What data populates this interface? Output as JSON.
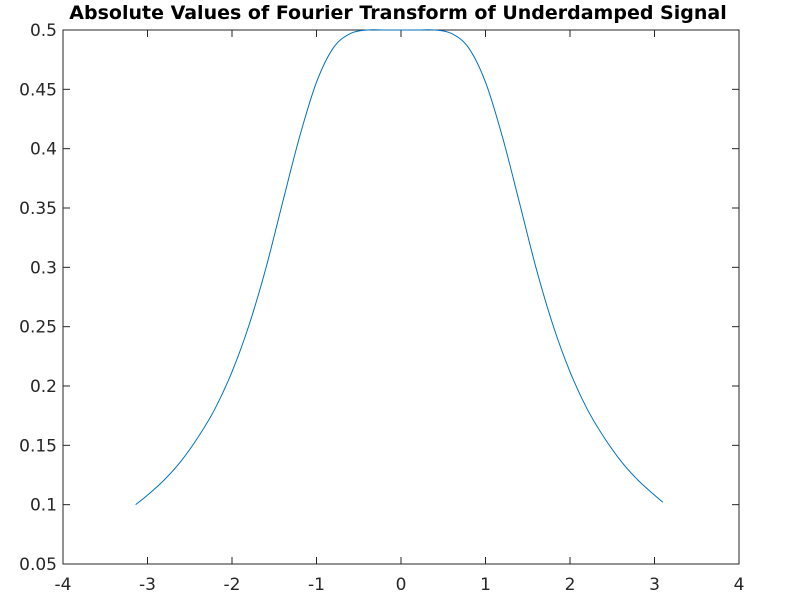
{
  "chart_data": {
    "type": "line",
    "title": "Absolute Values of Fourier Transform of Underdamped Signal",
    "xlabel": "",
    "ylabel": "",
    "xlim": [
      -4,
      4
    ],
    "ylim": [
      0.05,
      0.5
    ],
    "grid": false,
    "x_ticks": [
      {
        "value": -4,
        "label": "-4"
      },
      {
        "value": -3,
        "label": "-3"
      },
      {
        "value": -2,
        "label": "-2"
      },
      {
        "value": -1,
        "label": "-1"
      },
      {
        "value": 0,
        "label": "0"
      },
      {
        "value": 1,
        "label": "1"
      },
      {
        "value": 2,
        "label": "2"
      },
      {
        "value": 3,
        "label": "3"
      },
      {
        "value": 4,
        "label": "4"
      }
    ],
    "y_ticks": [
      {
        "value": 0.05,
        "label": "0.05"
      },
      {
        "value": 0.1,
        "label": "0.1"
      },
      {
        "value": 0.15,
        "label": "0.15"
      },
      {
        "value": 0.2,
        "label": "0.2"
      },
      {
        "value": 0.25,
        "label": "0.25"
      },
      {
        "value": 0.3,
        "label": "0.3"
      },
      {
        "value": 0.35,
        "label": "0.35"
      },
      {
        "value": 0.4,
        "label": "0.4"
      },
      {
        "value": 0.45,
        "label": "0.45"
      },
      {
        "value": 0.5,
        "label": "0.5"
      }
    ],
    "series": [
      {
        "color": "#0072bd",
        "x": [
          -3.14,
          -3.0,
          -2.8,
          -2.6,
          -2.4,
          -2.2,
          -2.0,
          -1.8,
          -1.6,
          -1.4,
          -1.2,
          -1.0,
          -0.8,
          -0.6,
          -0.4,
          -0.2,
          0.0,
          0.2,
          0.4,
          0.6,
          0.8,
          1.0,
          1.2,
          1.4,
          1.6,
          1.8,
          2.0,
          2.2,
          2.4,
          2.6,
          2.8,
          3.0,
          3.1
        ],
        "y": [
          0.1,
          0.108,
          0.121,
          0.137,
          0.157,
          0.181,
          0.212,
          0.251,
          0.299,
          0.355,
          0.41,
          0.456,
          0.485,
          0.497,
          0.5,
          0.5,
          0.5,
          0.5,
          0.5,
          0.497,
          0.485,
          0.456,
          0.41,
          0.355,
          0.299,
          0.251,
          0.212,
          0.181,
          0.157,
          0.137,
          0.121,
          0.108,
          0.102
        ]
      }
    ]
  }
}
